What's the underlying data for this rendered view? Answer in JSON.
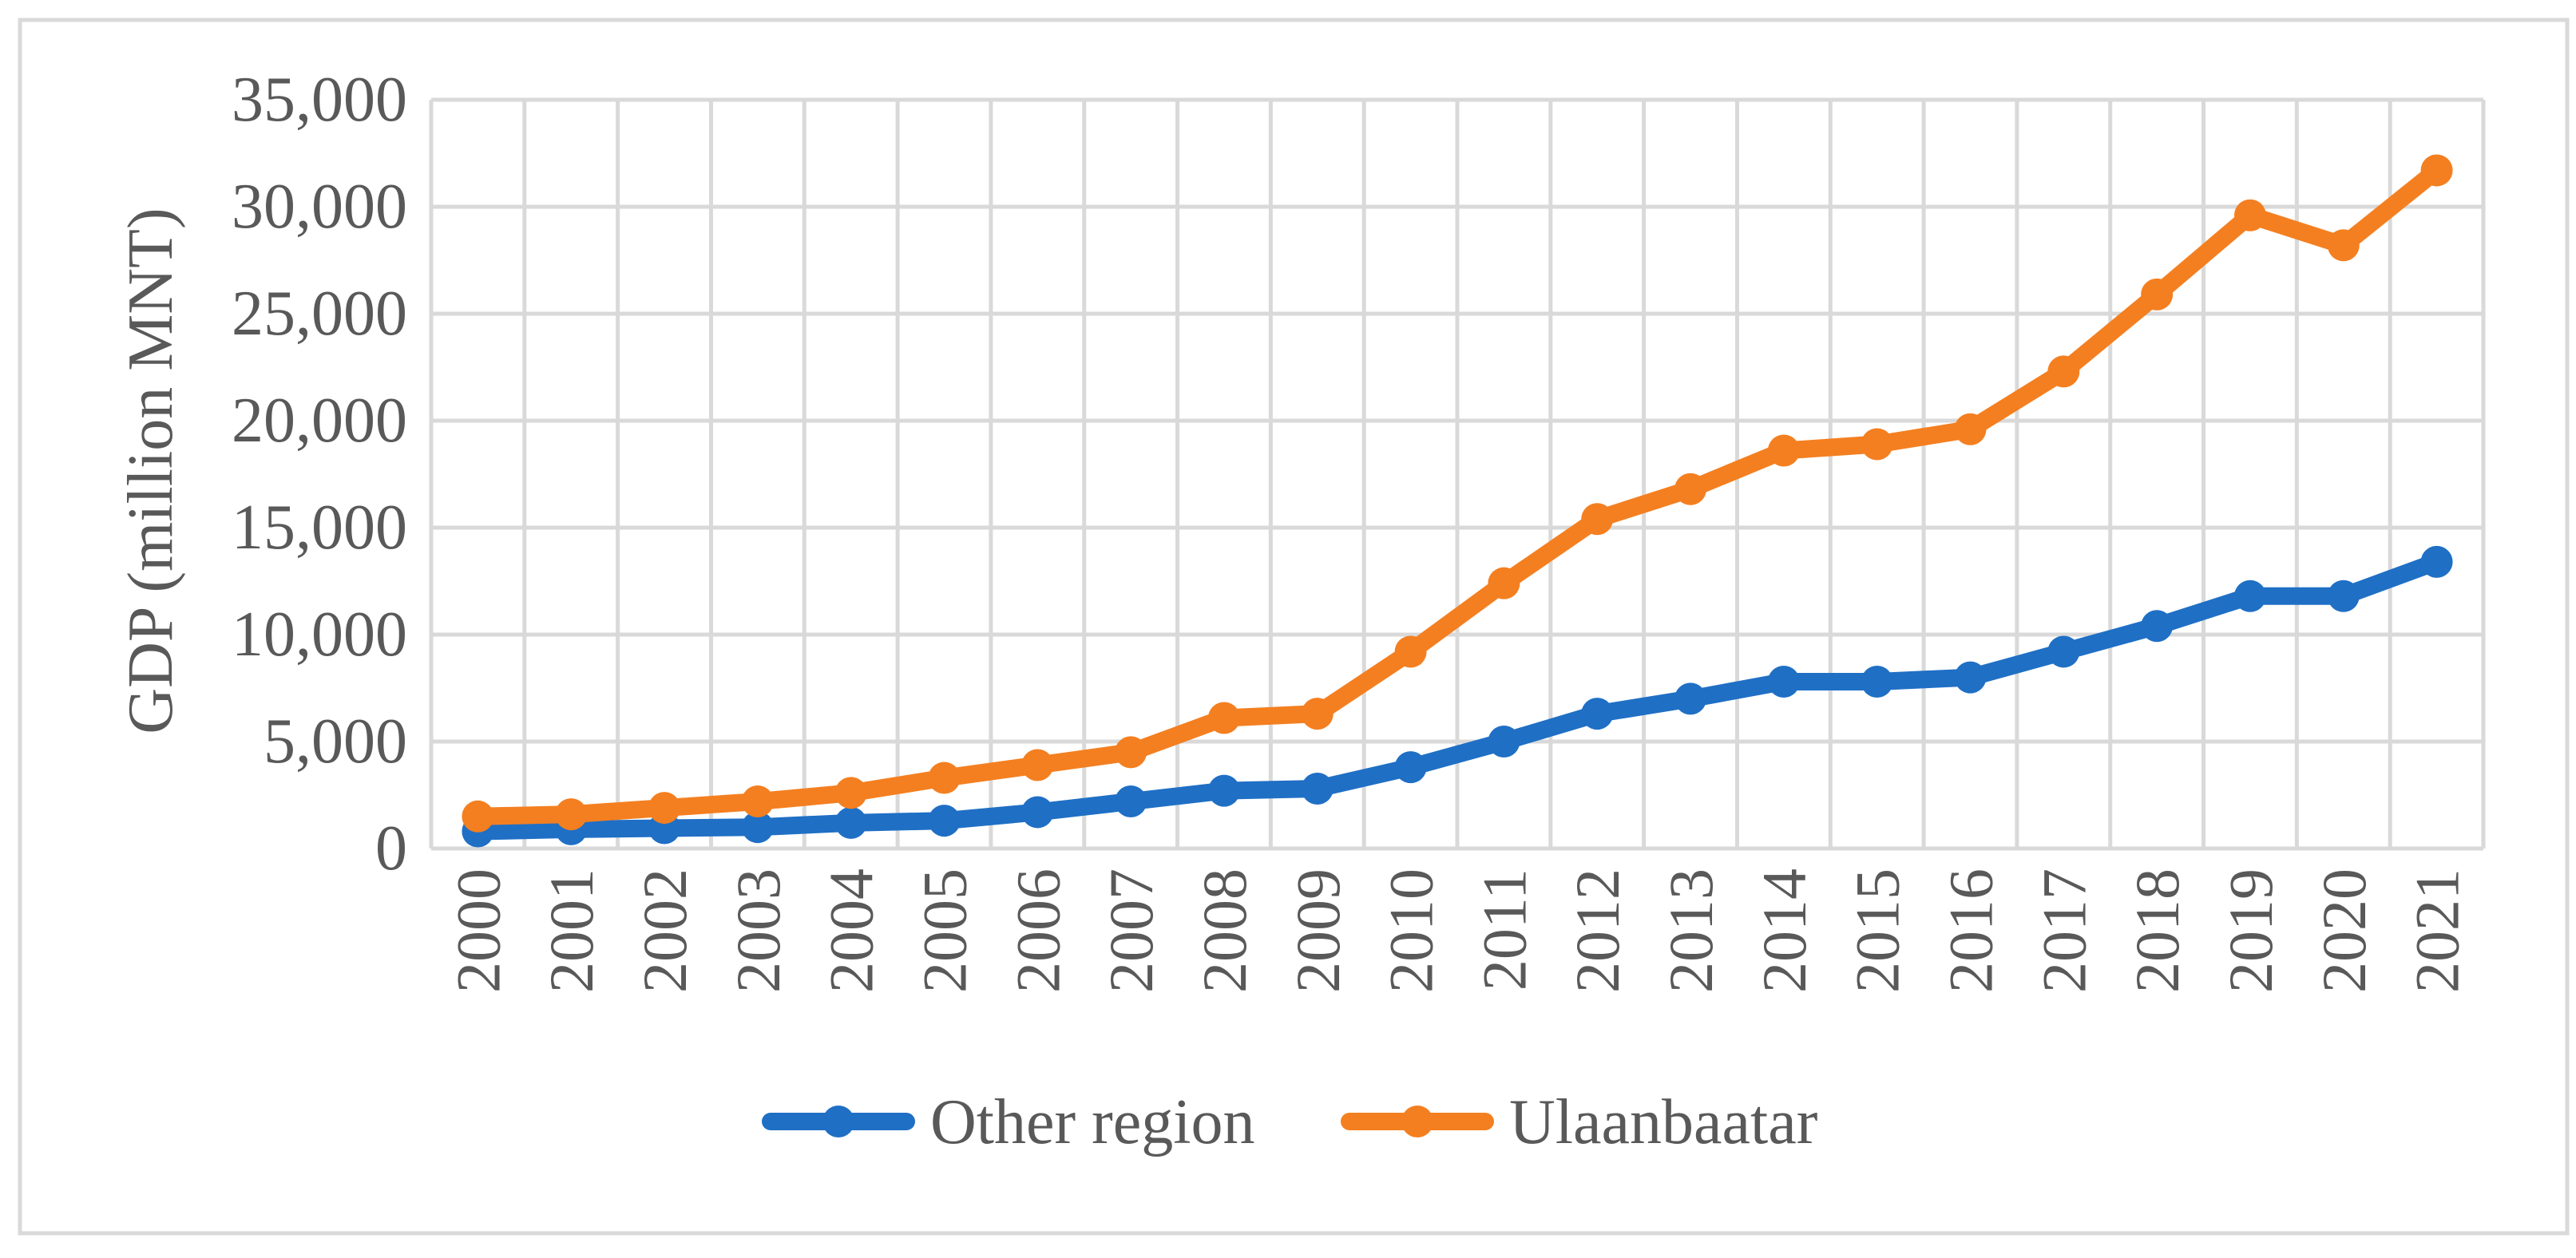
{
  "chart_data": {
    "type": "line",
    "title": "",
    "xlabel": "",
    "ylabel": "GDP (million MNT)",
    "x": [
      "2000",
      "2001",
      "2002",
      "2003",
      "2004",
      "2005",
      "2006",
      "2007",
      "2008",
      "2009",
      "2010",
      "2011",
      "2012",
      "2013",
      "2014",
      "2015",
      "2016",
      "2017",
      "2018",
      "2019",
      "2020",
      "2021"
    ],
    "ylim": [
      0,
      35000
    ],
    "yticks": [
      0,
      5000,
      10000,
      15000,
      20000,
      25000,
      30000,
      35000
    ],
    "ytick_labels": [
      "0",
      "5,000",
      "10,000",
      "15,000",
      "20,000",
      "25,000",
      "30,000",
      "35,000"
    ],
    "grid": true,
    "legend_position": "bottom",
    "series": [
      {
        "name": "Other region",
        "color": "#1f6fc5",
        "values": [
          800,
          900,
          950,
          1000,
          1200,
          1300,
          1700,
          2200,
          2700,
          2800,
          3800,
          5000,
          6300,
          7000,
          7800,
          7800,
          8000,
          9200,
          10400,
          11800,
          11800,
          13400
        ]
      },
      {
        "name": "Ulaanbaatar",
        "color": "#f47f20",
        "values": [
          1500,
          1600,
          1900,
          2200,
          2600,
          3300,
          3900,
          4500,
          6100,
          6300,
          9200,
          12400,
          15400,
          16800,
          18600,
          18900,
          19600,
          22300,
          25900,
          29600,
          28200,
          31700
        ]
      }
    ]
  }
}
